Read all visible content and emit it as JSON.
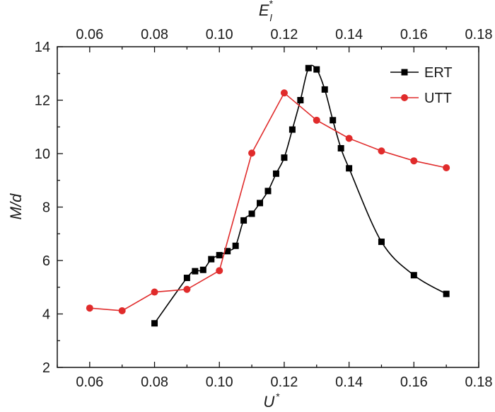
{
  "chart_data": {
    "type": "line",
    "xlabel": "U",
    "xlabel_sup": "*",
    "top_xlabel": "E",
    "top_xlabel_sub": "l",
    "top_xlabel_sup": "*",
    "ylabel": "M/d",
    "xlim": [
      0.05,
      0.18
    ],
    "ylim": [
      2,
      14
    ],
    "x_ticks": [
      "0.06",
      "0.08",
      "0.10",
      "0.12",
      "0.14",
      "0.16",
      "0.18"
    ],
    "y_ticks": [
      "2",
      "4",
      "6",
      "8",
      "10",
      "12",
      "14"
    ],
    "grid": false,
    "legend_position": "top-right",
    "series": [
      {
        "name": "ERT",
        "color": "#000000",
        "marker": "square",
        "line": "smooth",
        "x": [
          0.08,
          0.09,
          0.0925,
          0.095,
          0.0975,
          0.1,
          0.1025,
          0.105,
          0.1075,
          0.11,
          0.1125,
          0.115,
          0.1175,
          0.12,
          0.1225,
          0.125,
          0.1275,
          0.13,
          0.1325,
          0.135,
          0.1375,
          0.14,
          0.15,
          0.16,
          0.17
        ],
        "y": [
          3.65,
          5.35,
          5.6,
          5.65,
          6.05,
          6.2,
          6.35,
          6.55,
          7.5,
          7.75,
          8.15,
          8.6,
          9.25,
          9.85,
          10.9,
          12.0,
          13.2,
          13.15,
          12.4,
          11.25,
          10.2,
          9.45,
          6.7,
          5.45,
          4.75
        ]
      },
      {
        "name": "UTT",
        "color": "#e02b2b",
        "marker": "circle",
        "line": "straight",
        "x": [
          0.06,
          0.07,
          0.08,
          0.09,
          0.1,
          0.11,
          0.12,
          0.13,
          0.14,
          0.15,
          0.16,
          0.17
        ],
        "y": [
          4.22,
          4.12,
          4.82,
          4.92,
          5.62,
          10.02,
          12.27,
          11.25,
          10.57,
          10.1,
          9.73,
          9.47
        ]
      }
    ]
  }
}
